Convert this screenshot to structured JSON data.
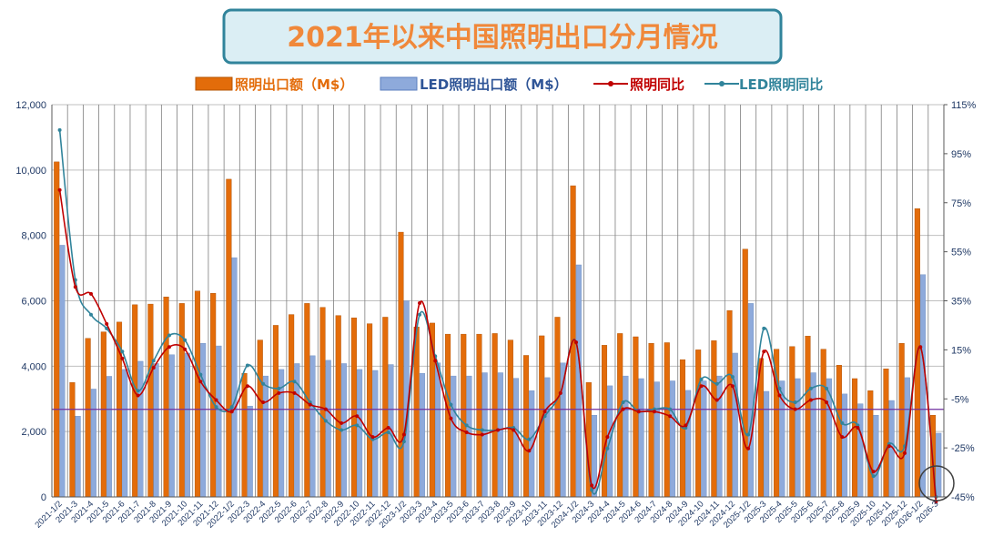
{
  "chart_data": {
    "type": "bar",
    "title": "2021年以来中国照明出口分月情况",
    "ylim_left": [
      0,
      12000
    ],
    "yticks_left": [
      "0",
      "2,000",
      "4,000",
      "6,000",
      "8,000",
      "10,000",
      "12,000"
    ],
    "ylim_right": [
      -45,
      125
    ],
    "yticks_right": [
      "-45%",
      "-25%",
      "-5%",
      "15%",
      "35%",
      "55%",
      "75%",
      "95%",
      "115%"
    ],
    "legend_position": "top-center",
    "grid": "vertical-and-horizontal",
    "reference_line_left_value": 2680,
    "categories": [
      "2021-1/2",
      "2021-3",
      "2021-4",
      "2021-5",
      "2021-6",
      "2021-7",
      "2021-8",
      "2021-9",
      "2021-10",
      "2021-11",
      "2021-12",
      "2022-1/2",
      "2022-3",
      "2022-4",
      "2022-5",
      "2022-6",
      "2022-7",
      "2022-8",
      "2022-9",
      "2022-10",
      "2022-11",
      "2022-12",
      "2023-1/2",
      "2023-3",
      "2023-4",
      "2023-5",
      "2023-6",
      "2023-7",
      "2023-8",
      "2023-9",
      "2023-10",
      "2023-11",
      "2023-12",
      "2024-1/2",
      "2024-3",
      "2024-4",
      "2024-5",
      "2024-6",
      "2024-7",
      "2024-8",
      "2024-9",
      "2024-10",
      "2024-11",
      "2024-12",
      "2025-1/2",
      "2025-3",
      "2025-4",
      "2025-5",
      "2025-6",
      "2025-7",
      "2025-8",
      "2025-9",
      "2025-10",
      "2025-11",
      "2025-12",
      "2026-1/2",
      "2026-3"
    ],
    "series": [
      {
        "name": "照明出口额（M$）",
        "kind": "bar",
        "axis": "left",
        "color": "#e36c0a",
        "values": [
          10250,
          3500,
          4850,
          5050,
          5350,
          5880,
          5900,
          6120,
          5920,
          6300,
          6230,
          9720,
          3780,
          4800,
          5250,
          5580,
          5920,
          5800,
          5550,
          5480,
          5300,
          5500,
          8100,
          5200,
          5320,
          4980,
          4980,
          4980,
          5000,
          4800,
          4330,
          4930,
          5500,
          9520,
          3500,
          4640,
          5000,
          4900,
          4700,
          4720,
          4200,
          4500,
          4780,
          5700,
          7580,
          4240,
          4520,
          4600,
          4920,
          4520,
          4030,
          3620,
          3250,
          3920,
          4700,
          8820,
          2500
        ]
      },
      {
        "name": "LED照明出口额（M$）",
        "kind": "bar",
        "axis": "left",
        "color": "#8eaadb",
        "values": [
          7700,
          2470,
          3300,
          3690,
          3900,
          4150,
          4080,
          4350,
          4400,
          4700,
          4620,
          7320,
          2780,
          3700,
          3900,
          4080,
          4320,
          4180,
          4080,
          3900,
          3870,
          4050,
          6000,
          3780,
          4100,
          3700,
          3700,
          3800,
          3800,
          3630,
          3250,
          3650,
          4100,
          7100,
          2500,
          3400,
          3700,
          3620,
          3520,
          3550,
          3260,
          3550,
          3700,
          4400,
          5920,
          3230,
          3550,
          3620,
          3800,
          3620,
          3150,
          2850,
          2500,
          2950,
          3650,
          6800,
          1950
        ]
      },
      {
        "name": "照明同比",
        "kind": "line",
        "axis": "right",
        "color": "#c00000",
        "values": [
          88,
          46,
          43,
          30,
          15,
          -1,
          11,
          20,
          19,
          5,
          -3,
          -8,
          3,
          -4,
          0,
          0,
          -5,
          -7,
          -13,
          -10,
          -19,
          -15,
          -18,
          39,
          14,
          -11,
          -17,
          -18,
          -16,
          -16,
          -25,
          -8,
          0,
          22,
          -40,
          -19,
          -7,
          -8,
          -8,
          -10,
          -14,
          3,
          -3,
          3,
          -24,
          18,
          -1,
          -7,
          -3,
          -4,
          -19,
          -15,
          -34,
          -23,
          -26,
          20,
          -47
        ]
      },
      {
        "name": "LED照明同比",
        "kind": "line",
        "axis": "right",
        "color": "#31849b",
        "values": [
          114,
          49,
          34,
          28,
          18,
          1,
          14,
          25,
          23,
          8,
          -6,
          -6,
          12,
          4,
          2,
          5,
          -4,
          -12,
          -16,
          -14,
          -20,
          -17,
          -21,
          34,
          16,
          -5,
          -14,
          -16,
          -16,
          -15,
          -20,
          -10,
          0,
          22,
          -42,
          -24,
          -4,
          -8,
          -7,
          -7,
          -15,
          6,
          4,
          7,
          -18,
          28,
          2,
          -4,
          2,
          2,
          -13,
          -14,
          -36,
          -22,
          -23,
          20,
          -45
        ]
      }
    ]
  }
}
